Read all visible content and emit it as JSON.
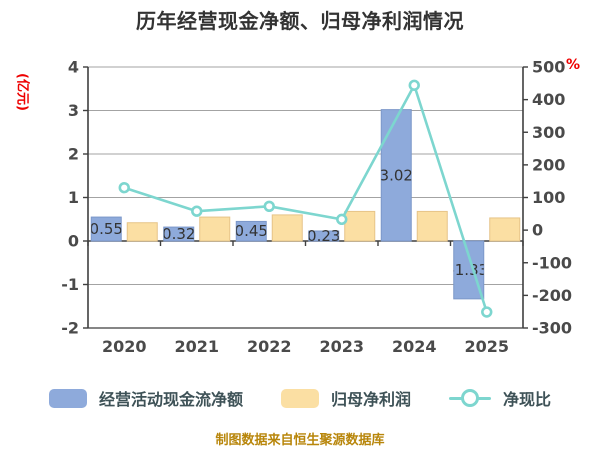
{
  "title": "历年经营现金净额、归母净利润情况",
  "attribution": "制图数据来自恒生聚源数据库",
  "axes": {
    "left_unit": "(亿元)",
    "right_unit": "%",
    "unit_color": "#ee0000"
  },
  "legend": {
    "items": [
      {
        "label": "经营活动现金流净额",
        "type": "bar",
        "color": "#8EAADB"
      },
      {
        "label": "归母净利润",
        "type": "bar",
        "color": "#FBDFA3"
      },
      {
        "label": "净现比",
        "type": "line",
        "color": "#7DD6CF"
      }
    ]
  },
  "colors": {
    "bar_blue": "#8EAADB",
    "bar_blue_border": "#7B97C9",
    "bar_yellow": "#FBDFA3",
    "bar_yellow_border": "#E6C488",
    "line_teal": "#7DD6CF",
    "marker_fill": "#FFFFFF",
    "grid": "#A3A3A3",
    "axis": "#3F3F3F",
    "tick_text": "#4A4A4A",
    "bar_label_text": "#333333"
  },
  "chart_data": {
    "type": "bar+line dual-axis",
    "categories": [
      "2020",
      "2021",
      "2022",
      "2023",
      "2024",
      "2025"
    ],
    "series": [
      {
        "name": "经营活动现金流净额",
        "type": "bar",
        "axis": "left",
        "values": [
          0.55,
          0.32,
          0.45,
          0.23,
          3.02,
          -1.33
        ],
        "labels": [
          "0.55",
          "0.32",
          "0.45",
          "0.23",
          "3.02",
          "-1.33"
        ]
      },
      {
        "name": "归母净利润",
        "type": "bar",
        "axis": "left",
        "values": [
          0.42,
          0.55,
          0.6,
          0.68,
          0.68,
          0.53
        ],
        "note": "values estimated from gridlines, no data labels shown"
      },
      {
        "name": "净现比",
        "type": "line",
        "axis": "right",
        "values": [
          130,
          58,
          73,
          33,
          444,
          -251
        ],
        "note": "percent, estimated from right axis"
      }
    ],
    "left_axis": {
      "label": "(亿元)",
      "ticks": [
        4,
        3,
        2,
        1,
        0,
        -1,
        -2
      ],
      "ylim": [
        -2,
        4
      ]
    },
    "right_axis": {
      "label": "%",
      "ticks": [
        500,
        400,
        300,
        200,
        100,
        0,
        -100,
        -200,
        -300
      ],
      "ylim": [
        -300,
        500
      ]
    },
    "grid": true,
    "legend_position": "bottom",
    "title": "历年经营现金净额、归母净利润情况"
  }
}
